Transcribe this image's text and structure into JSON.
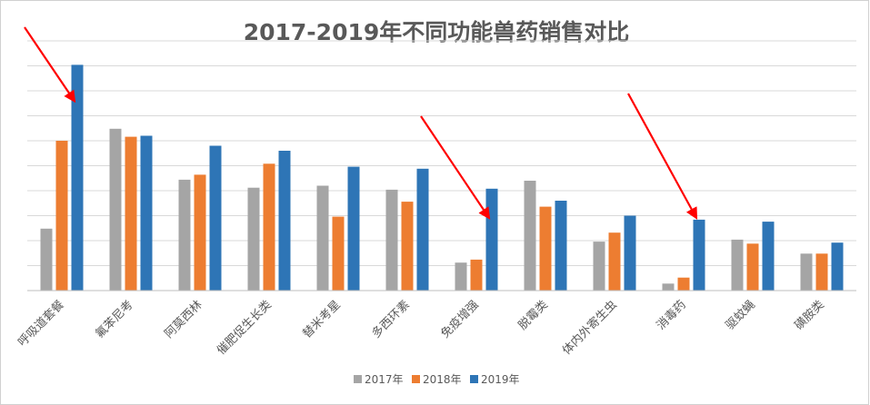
{
  "chart_data": {
    "type": "bar",
    "title": "2017-2019年不同功能兽药销售对比",
    "categories": [
      "呼吸道套餐",
      "氟苯尼考",
      "阿莫西林",
      "催肥促生长类",
      "替米考星",
      "多西环素",
      "免疫增强",
      "脱霉类",
      "体内外寄生虫",
      "消毒药",
      "驱蚊蝇",
      "磺胺类"
    ],
    "series": [
      {
        "name": "2017年",
        "color": "#a5a5a5",
        "values": [
          62,
          162,
          111,
          103,
          105,
          101,
          28,
          110,
          49,
          7,
          51,
          37
        ]
      },
      {
        "name": "2018年",
        "color": "#ed7d31",
        "values": [
          150,
          154,
          116,
          127,
          74,
          89,
          31,
          84,
          58,
          13,
          47,
          37
        ]
      },
      {
        "name": "2019年",
        "color": "#2e75b6",
        "values": [
          226,
          155,
          145,
          140,
          124,
          122,
          102,
          90,
          75,
          71,
          69,
          48
        ]
      }
    ],
    "ylim": [
      0,
      250
    ],
    "grid": true,
    "legend_position": "bottom",
    "annotations": [
      {
        "type": "arrow",
        "color": "#ff0000",
        "target_category": "呼吸道套餐"
      },
      {
        "type": "arrow",
        "color": "#ff0000",
        "target_category": "免疫增强"
      },
      {
        "type": "arrow",
        "color": "#ff0000",
        "target_category": "消毒药"
      }
    ]
  }
}
